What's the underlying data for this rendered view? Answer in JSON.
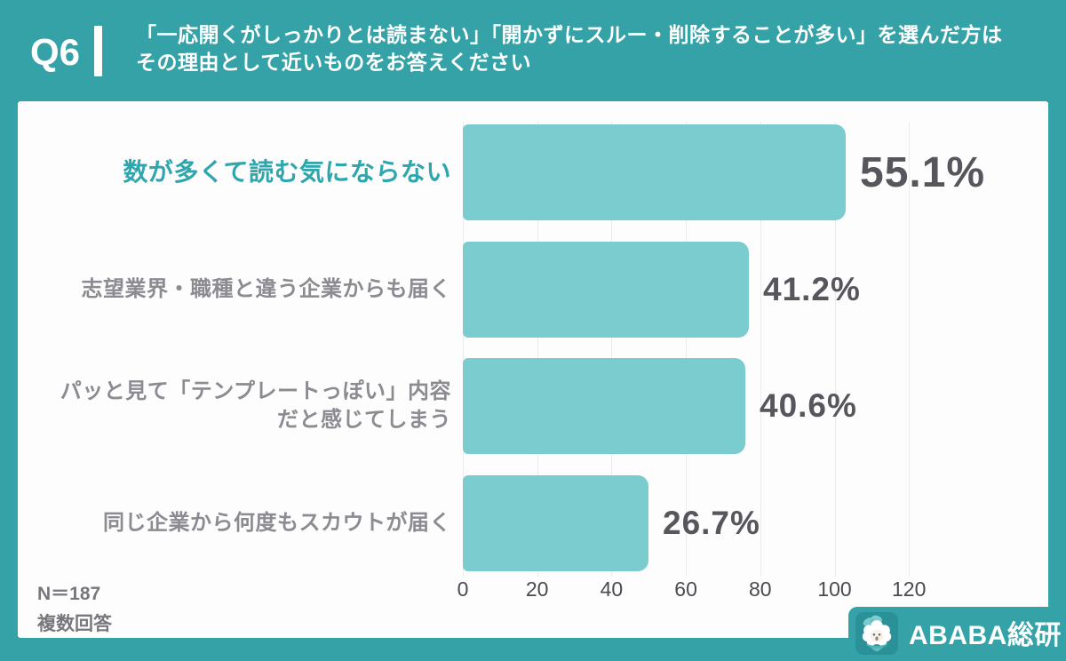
{
  "header": {
    "question_no": "Q6",
    "title": "「一応開くがしっかりとは読まない」「開かずにスルー・削除することが多い」を選んだ方は\nその理由として近いものをお答えください"
  },
  "chart_data": {
    "type": "bar",
    "orientation": "horizontal",
    "title": "「一応開くがしっかりとは読まない」「開かずにスルー・削除することが多い」を選んだ方はその理由として近いものをお答えください",
    "categories": [
      "数が多くて読む気にならない",
      "志望業界・職種と違う企業からも届く",
      "パッと見て「テンプレートっぽい」内容\nだと感じてしまう",
      "同じ企業から何度もスカウトが届く"
    ],
    "values": [
      103,
      77,
      76,
      50
    ],
    "value_labels": [
      "55.1%",
      "41.2%",
      "40.6%",
      "26.7%"
    ],
    "percent": [
      55.1,
      41.2,
      40.6,
      26.7
    ],
    "highlight_index": 0,
    "x_ticks": [
      0,
      20,
      40,
      60,
      80,
      100,
      120
    ],
    "xlim": [
      0,
      140
    ],
    "grid": true,
    "legend": false,
    "xlabel": "",
    "ylabel": "",
    "sample_size_note": "N＝187",
    "answer_type_note": "複数回答"
  },
  "footer": {
    "n_label": "N＝187",
    "answer_type": "複数回答"
  },
  "logo": {
    "text": "ABABA総研",
    "icon": "alpaca-mascot-icon"
  },
  "colors": {
    "background": "#35a2a8",
    "panel": "#fdfdfd",
    "bar": "#7accce",
    "accent_label": "#2fa6ae",
    "category_label": "#8b8b91",
    "value_label": "#57565c",
    "axis_label": "#4b4b4f",
    "footnote": "#77777d",
    "gridline": "#ececec",
    "header_text": "#ffffff",
    "logo_tile": "#2a9198"
  }
}
